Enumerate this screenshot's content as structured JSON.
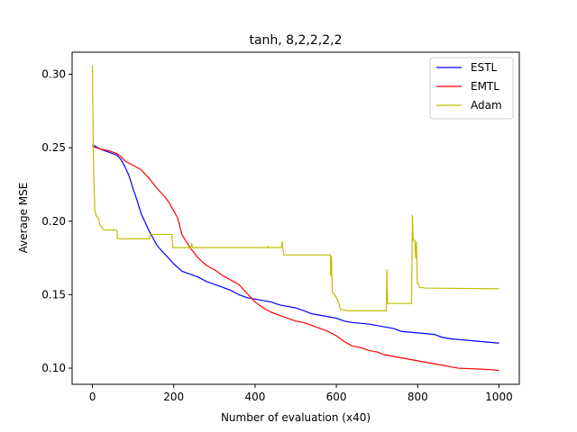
{
  "chart_data": {
    "type": "line",
    "title": "tanh, 8,2,2,2,2",
    "xlabel": "Number of evaluation (x40)",
    "ylabel": "Average MSE",
    "xlim": [
      -50,
      1050
    ],
    "ylim": [
      0.089,
      0.315
    ],
    "xticks": [
      0,
      200,
      400,
      600,
      800,
      1000
    ],
    "xtick_labels": [
      "0",
      "200",
      "400",
      "600",
      "800",
      "1000"
    ],
    "yticks": [
      0.1,
      0.15,
      0.2,
      0.25,
      0.3
    ],
    "ytick_labels": [
      "0.10",
      "0.15",
      "0.20",
      "0.25",
      "0.30"
    ],
    "grid": false,
    "legend_position": "top-right",
    "series": [
      {
        "name": "ESTL",
        "color": "#0000ff",
        "points": [
          [
            0,
            0.252
          ],
          [
            20,
            0.249
          ],
          [
            40,
            0.247
          ],
          [
            60,
            0.245
          ],
          [
            70,
            0.242
          ],
          [
            80,
            0.237
          ],
          [
            90,
            0.231
          ],
          [
            100,
            0.222
          ],
          [
            110,
            0.214
          ],
          [
            120,
            0.205
          ],
          [
            130,
            0.199
          ],
          [
            140,
            0.193
          ],
          [
            150,
            0.188
          ],
          [
            160,
            0.183
          ],
          [
            180,
            0.177
          ],
          [
            200,
            0.171
          ],
          [
            220,
            0.166
          ],
          [
            240,
            0.164
          ],
          [
            260,
            0.162
          ],
          [
            280,
            0.159
          ],
          [
            300,
            0.157
          ],
          [
            320,
            0.155
          ],
          [
            340,
            0.153
          ],
          [
            360,
            0.15
          ],
          [
            380,
            0.148
          ],
          [
            400,
            0.147
          ],
          [
            420,
            0.146
          ],
          [
            440,
            0.145
          ],
          [
            460,
            0.143
          ],
          [
            480,
            0.142
          ],
          [
            500,
            0.141
          ],
          [
            520,
            0.139
          ],
          [
            540,
            0.137
          ],
          [
            560,
            0.136
          ],
          [
            580,
            0.135
          ],
          [
            600,
            0.134
          ],
          [
            620,
            0.132
          ],
          [
            640,
            0.131
          ],
          [
            680,
            0.13
          ],
          [
            700,
            0.129
          ],
          [
            720,
            0.128
          ],
          [
            740,
            0.127
          ],
          [
            760,
            0.125
          ],
          [
            800,
            0.124
          ],
          [
            840,
            0.123
          ],
          [
            860,
            0.121
          ],
          [
            880,
            0.12
          ],
          [
            920,
            0.119
          ],
          [
            960,
            0.118
          ],
          [
            1000,
            0.117
          ]
        ]
      },
      {
        "name": "EMTL",
        "color": "#ff0000",
        "points": [
          [
            0,
            0.251
          ],
          [
            20,
            0.249
          ],
          [
            40,
            0.248
          ],
          [
            60,
            0.246
          ],
          [
            70,
            0.244
          ],
          [
            80,
            0.241
          ],
          [
            100,
            0.238
          ],
          [
            120,
            0.235
          ],
          [
            140,
            0.229
          ],
          [
            160,
            0.222
          ],
          [
            180,
            0.216
          ],
          [
            190,
            0.212
          ],
          [
            200,
            0.207
          ],
          [
            210,
            0.202
          ],
          [
            220,
            0.191
          ],
          [
            240,
            0.182
          ],
          [
            260,
            0.175
          ],
          [
            280,
            0.17
          ],
          [
            300,
            0.167
          ],
          [
            320,
            0.163
          ],
          [
            340,
            0.16
          ],
          [
            360,
            0.157
          ],
          [
            380,
            0.151
          ],
          [
            400,
            0.145
          ],
          [
            420,
            0.141
          ],
          [
            440,
            0.138
          ],
          [
            460,
            0.136
          ],
          [
            480,
            0.134
          ],
          [
            500,
            0.132
          ],
          [
            520,
            0.131
          ],
          [
            540,
            0.129
          ],
          [
            560,
            0.127
          ],
          [
            580,
            0.125
          ],
          [
            600,
            0.122
          ],
          [
            620,
            0.118
          ],
          [
            640,
            0.115
          ],
          [
            660,
            0.114
          ],
          [
            680,
            0.112
          ],
          [
            700,
            0.111
          ],
          [
            720,
            0.109
          ],
          [
            740,
            0.108
          ],
          [
            760,
            0.107
          ],
          [
            780,
            0.106
          ],
          [
            800,
            0.105
          ],
          [
            820,
            0.104
          ],
          [
            840,
            0.103
          ],
          [
            860,
            0.102
          ],
          [
            880,
            0.101
          ],
          [
            900,
            0.1
          ],
          [
            940,
            0.0995
          ],
          [
            980,
            0.099
          ],
          [
            1000,
            0.0985
          ]
        ]
      },
      {
        "name": "Adam",
        "color": "#bfbf00",
        "points": [
          [
            0,
            0.306
          ],
          [
            2,
            0.25
          ],
          [
            4,
            0.222
          ],
          [
            6,
            0.207
          ],
          [
            10,
            0.203
          ],
          [
            15,
            0.202
          ],
          [
            18,
            0.198
          ],
          [
            25,
            0.195
          ],
          [
            30,
            0.194
          ],
          [
            60,
            0.194
          ],
          [
            62,
            0.188
          ],
          [
            140,
            0.188
          ],
          [
            142,
            0.191
          ],
          [
            195,
            0.191
          ],
          [
            198,
            0.182
          ],
          [
            242,
            0.182
          ],
          [
            244,
            0.185
          ],
          [
            246,
            0.182
          ],
          [
            430,
            0.182
          ],
          [
            432,
            0.183
          ],
          [
            434,
            0.182
          ],
          [
            465,
            0.182
          ],
          [
            467,
            0.186
          ],
          [
            469,
            0.18
          ],
          [
            471,
            0.177
          ],
          [
            585,
            0.177
          ],
          [
            586,
            0.163
          ],
          [
            588,
            0.176
          ],
          [
            590,
            0.152
          ],
          [
            595,
            0.15
          ],
          [
            600,
            0.148
          ],
          [
            605,
            0.145
          ],
          [
            610,
            0.14
          ],
          [
            630,
            0.139
          ],
          [
            723,
            0.139
          ],
          [
            724,
            0.167
          ],
          [
            726,
            0.144
          ],
          [
            785,
            0.144
          ],
          [
            787,
            0.204
          ],
          [
            789,
            0.187
          ],
          [
            793,
            0.187
          ],
          [
            795,
            0.175
          ],
          [
            797,
            0.186
          ],
          [
            799,
            0.158
          ],
          [
            805,
            0.155
          ],
          [
            820,
            0.1545
          ],
          [
            1000,
            0.154
          ]
        ]
      }
    ]
  }
}
